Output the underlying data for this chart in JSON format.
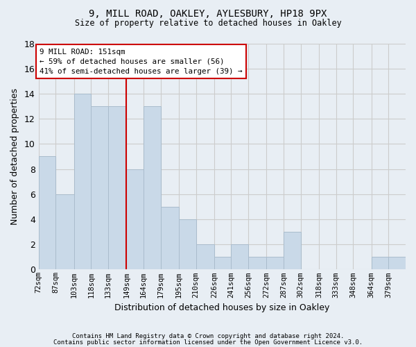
{
  "title1": "9, MILL ROAD, OAKLEY, AYLESBURY, HP18 9PX",
  "title2": "Size of property relative to detached houses in Oakley",
  "xlabel": "Distribution of detached houses by size in Oakley",
  "ylabel": "Number of detached properties",
  "bins": [
    "72sqm",
    "87sqm",
    "103sqm",
    "118sqm",
    "133sqm",
    "149sqm",
    "164sqm",
    "179sqm",
    "195sqm",
    "210sqm",
    "226sqm",
    "241sqm",
    "256sqm",
    "272sqm",
    "287sqm",
    "302sqm",
    "318sqm",
    "333sqm",
    "348sqm",
    "364sqm",
    "379sqm"
  ],
  "bin_edges": [
    72,
    87,
    103,
    118,
    133,
    149,
    164,
    179,
    195,
    210,
    226,
    241,
    256,
    272,
    287,
    302,
    318,
    333,
    348,
    364,
    379,
    394
  ],
  "values": [
    9,
    6,
    14,
    13,
    13,
    8,
    13,
    5,
    4,
    2,
    1,
    2,
    1,
    1,
    3,
    0,
    0,
    0,
    0,
    1,
    1
  ],
  "bar_facecolor": "#c9d9e8",
  "bar_edgecolor": "#aabccc",
  "grid_color": "#cccccc",
  "background_color": "#e8eef4",
  "vline_color": "#cc0000",
  "annotation_text": "9 MILL ROAD: 151sqm\n← 59% of detached houses are smaller (56)\n41% of semi-detached houses are larger (39) →",
  "annotation_box_color": "#ffffff",
  "annotation_box_edge": "#cc0000",
  "ylim": [
    0,
    18
  ],
  "yticks": [
    0,
    2,
    4,
    6,
    8,
    10,
    12,
    14,
    16,
    18
  ],
  "footer1": "Contains HM Land Registry data © Crown copyright and database right 2024.",
  "footer2": "Contains public sector information licensed under the Open Government Licence v3.0."
}
